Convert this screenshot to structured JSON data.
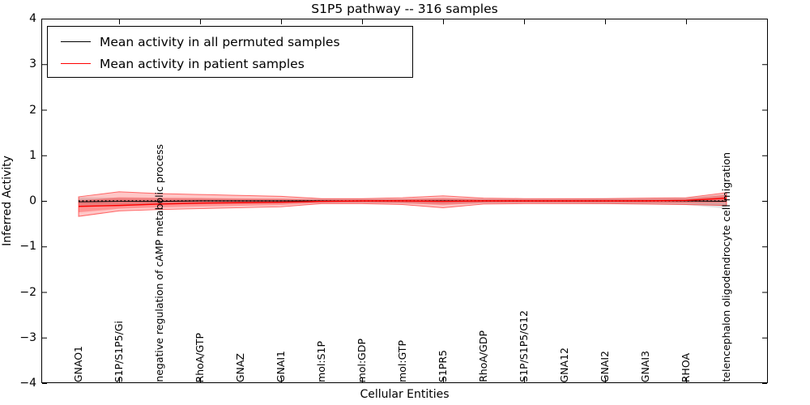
{
  "title": "S1P5 pathway -- 316 samples",
  "axes": {
    "ylabel": "Inferred Activity",
    "xlabel": "Cellular Entities",
    "yticks": [
      "4",
      "3",
      "2",
      "1",
      "0",
      "−1",
      "−2",
      "−3",
      "−4"
    ]
  },
  "legend": {
    "items": [
      {
        "label": "Mean activity in all permuted samples",
        "color": "#000000"
      },
      {
        "label": "Mean activity in patient samples",
        "color": "#ff0000"
      }
    ]
  },
  "colors": {
    "permuted_line": "#000000",
    "patient_line": "#ff0000",
    "patient_band": "rgba(255,0,0,0.22)",
    "patient_band_inner": "rgba(255,0,0,0.26)",
    "patient_band_edge": "rgba(255,0,0,0.55)",
    "permuted_band": "rgba(0,0,0,0.10)",
    "permuted_band_inner": "rgba(0,0,0,0.08)",
    "axis": "#000000"
  },
  "chart_data": {
    "type": "line",
    "title": "S1P5 pathway -- 316 samples",
    "xlabel": "Cellular Entities",
    "ylabel": "Inferred Activity",
    "ylim": [
      -4,
      4
    ],
    "ytick_values": [
      4,
      3,
      2,
      1,
      0,
      -1,
      -2,
      -3,
      -4
    ],
    "grid": false,
    "legend_position": "upper left",
    "reference_line_y": 0,
    "categories": [
      "GNAO1",
      "S1P/S1P5/Gi",
      "negative regulation of cAMP metabolic process",
      "RhoA/GTP",
      "GNAZ",
      "GNAI1",
      "mol:S1P",
      "mol:GDP",
      "mol:GTP",
      "S1PR5",
      "RhoA/GDP",
      "S1P/S1P5/G12",
      "GNA12",
      "GNAI2",
      "GNAI3",
      "RHOA",
      "telencephalon oligodendrocyte cell migration"
    ],
    "series": [
      {
        "name": "Mean activity in all permuted samples",
        "color": "#000000",
        "values": [
          -0.02,
          -0.01,
          -0.01,
          0.0,
          0.0,
          0.0,
          0.0,
          0.0,
          0.0,
          0.0,
          0.0,
          0.0,
          0.0,
          0.0,
          0.0,
          0.0,
          -0.01
        ],
        "band_upper": [
          0.08,
          0.07,
          0.06,
          0.06,
          0.05,
          0.05,
          0.05,
          0.05,
          0.05,
          0.06,
          0.05,
          0.05,
          0.05,
          0.06,
          0.06,
          0.07,
          0.15
        ],
        "band_lower": [
          -0.12,
          -0.1,
          -0.08,
          -0.07,
          -0.06,
          -0.06,
          -0.05,
          -0.05,
          -0.06,
          -0.07,
          -0.06,
          -0.05,
          -0.06,
          -0.07,
          -0.08,
          -0.09,
          -0.17
        ]
      },
      {
        "name": "Mean activity in patient samples",
        "color": "#ff0000",
        "values": [
          -0.12,
          -0.1,
          -0.07,
          -0.05,
          -0.04,
          -0.03,
          -0.01,
          0.0,
          0.0,
          -0.01,
          0.0,
          0.0,
          0.0,
          0.0,
          0.0,
          0.01,
          0.06
        ],
        "band_upper": [
          0.09,
          0.2,
          0.16,
          0.14,
          0.12,
          0.1,
          0.05,
          0.05,
          0.07,
          0.11,
          0.06,
          0.05,
          0.05,
          0.05,
          0.06,
          0.07,
          0.18
        ],
        "band_lower": [
          -0.34,
          -0.22,
          -0.19,
          -0.17,
          -0.15,
          -0.13,
          -0.06,
          -0.06,
          -0.08,
          -0.15,
          -0.07,
          -0.06,
          -0.06,
          -0.06,
          -0.07,
          -0.08,
          -0.1
        ]
      }
    ]
  }
}
